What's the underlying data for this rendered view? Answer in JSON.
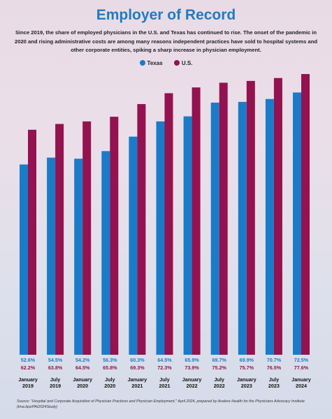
{
  "title": "Employer of Record",
  "subtitle": "Since 2019, the share of employed physicians in the U.S. and Texas has continued to rise. The onset of the pandemic in 2020 and rising administrative costs are among many reasons independent practices have sold to hospital systems and other corporate entities, spiking a sharp increase in physician employment.",
  "source": "Source: \"Hospital and Corporate Acquisition of Physician Practices and Physician Employment,\" April 2024, prepared by Avalere Health for the Physicians Advocacy Institute (tma.tips/PAI2024Study)",
  "colors": {
    "texas": "#1a7bc9",
    "us": "#93124f",
    "texas_label": "#1a7bc9",
    "us_label": "#93124f"
  },
  "chart_data": {
    "type": "bar",
    "title": "Employer of Record",
    "xlabel": "",
    "ylabel": "",
    "legend": "top-center",
    "grid": false,
    "categories": [
      [
        "January",
        "2019"
      ],
      [
        "July",
        "2019"
      ],
      [
        "January",
        "2020"
      ],
      [
        "July",
        "2020"
      ],
      [
        "January",
        "2021"
      ],
      [
        "July",
        "2021"
      ],
      [
        "January",
        "2022"
      ],
      [
        "July",
        "2022"
      ],
      [
        "January",
        "2023"
      ],
      [
        "July",
        "2023"
      ],
      [
        "January",
        "2024"
      ]
    ],
    "series": [
      {
        "name": "Texas",
        "values": [
          52.6,
          54.5,
          54.2,
          56.3,
          60.3,
          64.5,
          65.9,
          69.7,
          69.9,
          70.7,
          72.5
        ],
        "labels": [
          "52.6%",
          "54.5%",
          "54.2%",
          "56.3%",
          "60.3%",
          "64.5%",
          "65.9%",
          "69.7%",
          "69.9%",
          "70.7%",
          "72.5%"
        ]
      },
      {
        "name": "U.S.",
        "values": [
          62.2,
          63.8,
          64.5,
          65.8,
          69.3,
          72.3,
          73.9,
          75.2,
          75.7,
          76.5,
          77.6
        ],
        "labels": [
          "62.2%",
          "63.8%",
          "64.5%",
          "65.8%",
          "69.3%",
          "72.3%",
          "73.9%",
          "75.2%",
          "75.7%",
          "76.5%",
          "77.6%"
        ]
      }
    ]
  }
}
